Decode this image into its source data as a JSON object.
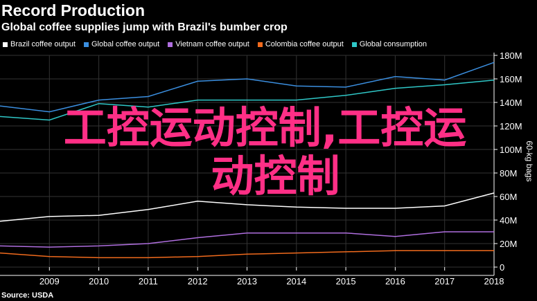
{
  "header": {
    "title": "Record Production",
    "subtitle": "Global coffee supplies jump with Brazil's bumber crop"
  },
  "source": "Source: USDA",
  "watermark": {
    "line1": "工控运动控制,工控运",
    "line2": "动控制"
  },
  "colors": {
    "background": "#000000",
    "grid": "#333333",
    "axis": "#ffffff",
    "watermark": "#ff2f86"
  },
  "chart_data": {
    "type": "line",
    "title": "Record Production",
    "subtitle": "Global coffee supplies jump with Brazil's bumber crop",
    "ylabel": "60-kg bags",
    "ylim": [
      0,
      180
    ],
    "y_ticks": [
      "0",
      "20M",
      "40M",
      "60M",
      "80M",
      "100M",
      "120M",
      "140M",
      "160M",
      "180M"
    ],
    "y_tick_values": [
      0,
      20,
      40,
      60,
      80,
      100,
      120,
      140,
      160,
      180
    ],
    "y_unit": "million bags",
    "x": [
      2008,
      2009,
      2010,
      2011,
      2012,
      2013,
      2014,
      2015,
      2016,
      2017,
      2018
    ],
    "x_ticks": [
      "2009",
      "2010",
      "2011",
      "2012",
      "2013",
      "2014",
      "2015",
      "2016",
      "2017",
      "2018"
    ],
    "xlim": [
      2008,
      2018
    ],
    "grid": true,
    "legend_position": "top-left",
    "series": [
      {
        "name": "Brazil coffee output",
        "color": "#ffffff",
        "values": [
          39,
          43,
          44,
          49,
          56,
          53,
          51,
          50,
          50,
          52,
          63
        ]
      },
      {
        "name": "Global coffee output",
        "color": "#3b8fe0",
        "values": [
          137,
          132,
          142,
          145,
          158,
          160,
          154,
          153,
          162,
          159,
          174
        ]
      },
      {
        "name": "Vietnam coffee output",
        "color": "#b06fe0",
        "values": [
          18,
          17,
          18,
          20,
          25,
          29,
          29,
          29,
          26,
          30,
          30
        ]
      },
      {
        "name": "Colombia coffee output",
        "color": "#f26b1d",
        "values": [
          12,
          9,
          8,
          8,
          9,
          11,
          12,
          13,
          14,
          14,
          14
        ]
      },
      {
        "name": "Global consumption",
        "color": "#2fc8c8",
        "values": [
          128,
          125,
          139,
          136,
          142,
          142,
          142,
          146,
          152,
          155,
          159
        ]
      }
    ]
  }
}
